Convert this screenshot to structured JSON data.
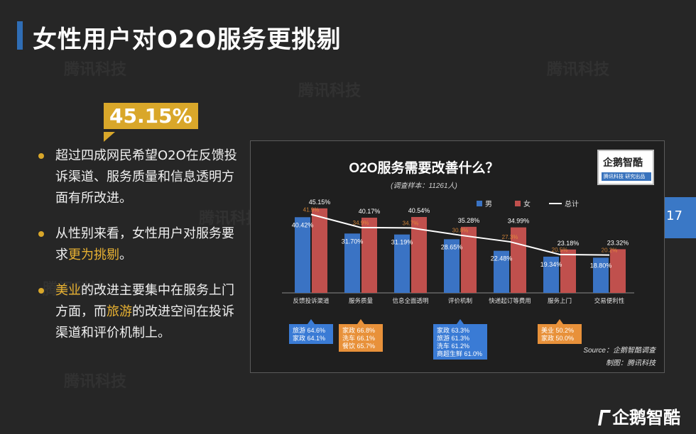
{
  "title": "女性用户对O2O服务更挑剔",
  "watermark": "腾讯科技",
  "big_number": "45.15%",
  "bullets": [
    {
      "parts": [
        "超过四成网民希望O2O在反馈投诉渠道、服务质量和信息透明方面有所改进。"
      ]
    },
    {
      "parts": [
        "从性别来看，女性用户对服务要求",
        "更为挑剔",
        "。"
      ]
    },
    {
      "parts": [
        "美业",
        "的改进主要集中在服务上门方面，而",
        "旅游",
        "的改进空间在投诉渠道和评价机制上。"
      ]
    }
  ],
  "page_number": "17",
  "logo": {
    "name": "企鹅智酷",
    "tagline": "腾讯科技 研究出品"
  },
  "bottom_logo": "企鹅智酷",
  "colors": {
    "male": "#3a73c4",
    "female": "#c0504d",
    "total": "#ffffff",
    "accent": "#d9a72a",
    "callout_blue": "#3a7bd5",
    "callout_orange": "#e8913a"
  },
  "chart_data": {
    "type": "bar",
    "title": "O2O服务需要改善什么？",
    "subtitle": "(调查样本：11261人)",
    "categories": [
      "反馈投诉渠道",
      "服务质量",
      "信息全面透明",
      "评价机制",
      "快递起订等费用",
      "服务上门",
      "交易便利性"
    ],
    "series": [
      {
        "name": "男",
        "type": "bar",
        "values": [
          40.42,
          31.7,
          31.19,
          28.65,
          22.48,
          19.34,
          18.8
        ],
        "labels": [
          "40.42%",
          "31.70%",
          "31.19%",
          "28.65%",
          "22.48%",
          "19.34%",
          "18.80%"
        ]
      },
      {
        "name": "女",
        "type": "bar",
        "values": [
          45.15,
          40.17,
          40.54,
          35.28,
          34.99,
          23.18,
          23.32
        ],
        "labels": [
          "45.15%",
          "40.17%",
          "40.54%",
          "35.28%",
          "34.99%",
          "23.18%",
          "23.32%"
        ]
      },
      {
        "name": "总计",
        "type": "line",
        "values": [
          41.9,
          34.9,
          34.7,
          30.8,
          27.3,
          20.5,
          20.2
        ],
        "labels": [
          "41.9%",
          "34.9%",
          "34.7%",
          "30.8%",
          "27.3%",
          "20.5%",
          "20.2%"
        ]
      }
    ],
    "callouts": [
      {
        "category": 0,
        "color": "blue",
        "lines": [
          "旅游 64.6%",
          "家政 64.1%"
        ]
      },
      {
        "category": 1,
        "color": "orange",
        "lines": [
          "家政 66.8%",
          "洗车 66.1%",
          "餐饮 65.7%"
        ]
      },
      {
        "category": 3,
        "color": "blue",
        "lines": [
          "家政 63.3%",
          "旅游 61.3%",
          "洗车 61.2%",
          "商超生鲜 61.0%"
        ]
      },
      {
        "category": 5,
        "color": "orange",
        "lines": [
          "美业 50.2%",
          "家政 50.0%"
        ]
      }
    ],
    "source": "Source：企鹅智酷调查",
    "credit": "制图：腾讯科技",
    "ylim": [
      0,
      50
    ],
    "legend_position": "top-right",
    "grid": false
  }
}
